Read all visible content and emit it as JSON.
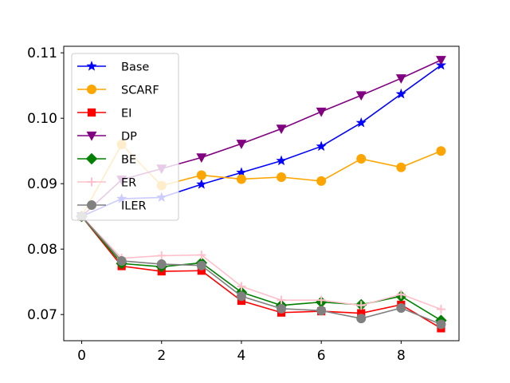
{
  "chart_data": {
    "type": "line",
    "title": "",
    "xlabel": "",
    "ylabel": "",
    "xlim": [
      -0.45,
      9.45
    ],
    "ylim": [
      0.066,
      0.111
    ],
    "x_ticks": [
      0,
      2,
      4,
      6,
      8
    ],
    "x_tick_labels": [
      "0",
      "2",
      "4",
      "6",
      "8"
    ],
    "y_ticks": [
      0.07,
      0.08,
      0.09,
      0.1,
      0.11
    ],
    "y_tick_labels": [
      "0.07",
      "0.08",
      "0.09",
      "0.10",
      "0.11"
    ],
    "grid": false,
    "legend_position": "top-left",
    "x": [
      0,
      1,
      2,
      3,
      4,
      5,
      6,
      7,
      8,
      9
    ],
    "series": [
      {
        "name": "Base",
        "color": "#0000ff",
        "marker": "star",
        "values": [
          0.085,
          0.0877,
          0.0879,
          0.0899,
          0.0917,
          0.0935,
          0.0957,
          0.0993,
          0.1037,
          0.1081
        ]
      },
      {
        "name": "SCARF",
        "color": "#ffa500",
        "marker": "circle",
        "values": [
          0.085,
          0.096,
          0.0897,
          0.0913,
          0.0907,
          0.091,
          0.0904,
          0.0938,
          0.0925,
          0.095
        ]
      },
      {
        "name": "EI",
        "color": "#ff0000",
        "marker": "square",
        "values": [
          0.085,
          0.0774,
          0.0766,
          0.0767,
          0.0721,
          0.0703,
          0.0705,
          0.0702,
          0.0715,
          0.0679
        ]
      },
      {
        "name": "DP",
        "color": "#800080",
        "marker": "triangle-down",
        "values": [
          0.085,
          0.0906,
          0.0923,
          0.094,
          0.0961,
          0.0984,
          0.101,
          0.1035,
          0.1061,
          0.1089
        ]
      },
      {
        "name": "BE",
        "color": "#008000",
        "marker": "diamond",
        "values": [
          0.085,
          0.0778,
          0.0773,
          0.0779,
          0.0734,
          0.0714,
          0.0719,
          0.0715,
          0.0728,
          0.0691
        ]
      },
      {
        "name": "ER",
        "color": "#ffc0cb",
        "marker": "plus",
        "values": [
          0.085,
          0.0786,
          0.079,
          0.0791,
          0.0743,
          0.0722,
          0.0722,
          0.0714,
          0.0731,
          0.0708
        ]
      },
      {
        "name": "ILER",
        "color": "#808080",
        "marker": "circle",
        "values": [
          0.085,
          0.0782,
          0.0777,
          0.0775,
          0.0728,
          0.0709,
          0.0706,
          0.0694,
          0.071,
          0.0685
        ]
      }
    ]
  }
}
